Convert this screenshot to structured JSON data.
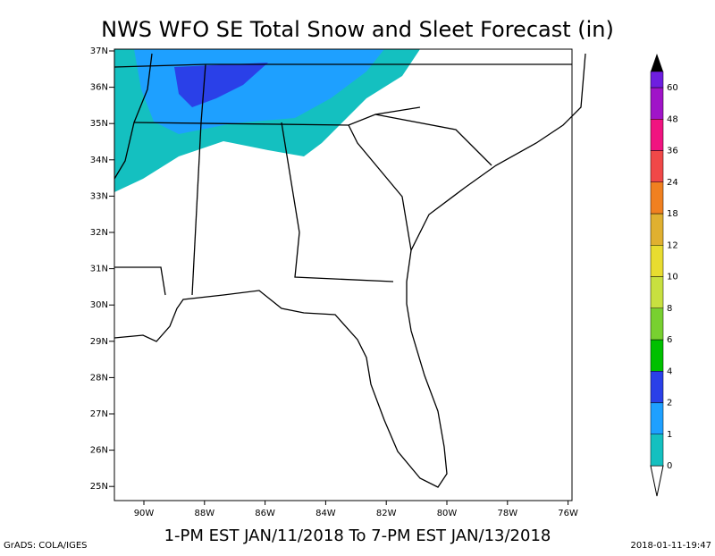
{
  "title": "NWS WFO SE Total Snow and Sleet Forecast (in)",
  "valid_period": "1-PM EST JAN/11/2018 To 7-PM EST JAN/13/2018",
  "credit": "GrADS: COLA/IGES",
  "timestamp": "2018-01-11-19:47",
  "lat_labels": [
    "37N",
    "36N",
    "35N",
    "34N",
    "33N",
    "32N",
    "31N",
    "30N",
    "29N",
    "28N",
    "27N",
    "26N",
    "25N"
  ],
  "lon_labels": [
    "90W",
    "88W",
    "86W",
    "84W",
    "82W",
    "80W",
    "78W",
    "76W"
  ],
  "legend": {
    "levels": [
      0,
      1,
      2,
      4,
      6,
      8,
      10,
      12,
      18,
      24,
      36,
      48,
      60
    ],
    "colors": [
      "#14c0c0",
      "#1ea0ff",
      "#2a40e8",
      "#00c000",
      "#78d030",
      "#c8e040",
      "#e8dc30",
      "#e0b030",
      "#f08020",
      "#f04848",
      "#f01480",
      "#a014c8",
      "#6e1ee0"
    ]
  }
}
